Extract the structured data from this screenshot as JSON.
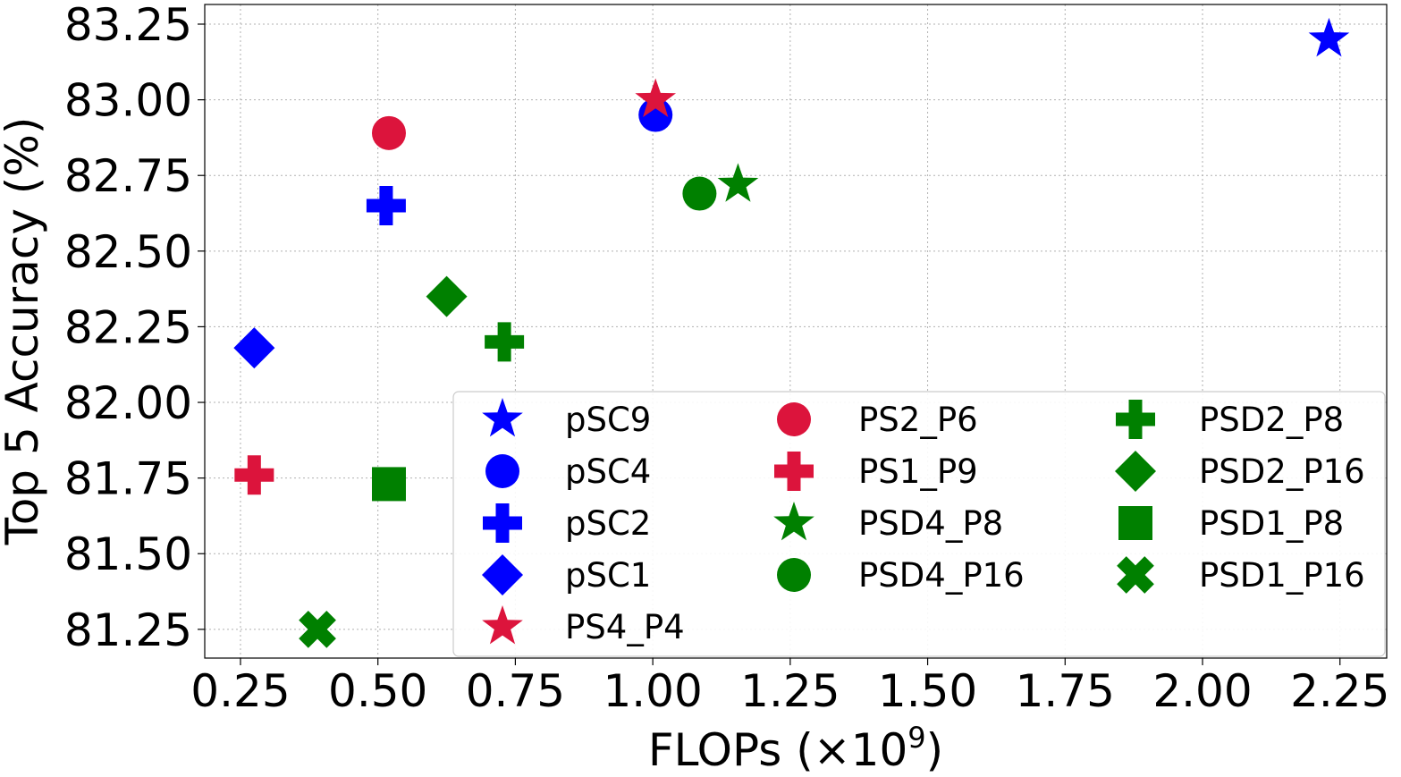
{
  "chart_data": {
    "type": "scatter",
    "title": "",
    "xlabel": "FLOPs (×10",
    "xlabel_exponent": "9",
    "xlabel_suffix": ")",
    "ylabel": "Top 5 Accuracy (%)",
    "xlim": [
      0.185,
      2.335
    ],
    "ylim": [
      81.155,
      83.315
    ],
    "xticks": [
      "0.25",
      "0.50",
      "0.75",
      "1.00",
      "1.25",
      "1.50",
      "1.75",
      "2.00",
      "2.25"
    ],
    "xtick_values": [
      0.25,
      0.5,
      0.75,
      1.0,
      1.25,
      1.5,
      1.75,
      2.0,
      2.25
    ],
    "yticks": [
      "81.25",
      "81.50",
      "81.75",
      "82.00",
      "82.25",
      "82.50",
      "82.75",
      "83.00",
      "83.25"
    ],
    "ytick_values": [
      81.25,
      81.5,
      81.75,
      82.0,
      82.25,
      82.5,
      82.75,
      83.0,
      83.25
    ],
    "grid": true,
    "legend_position": "lower-right",
    "legend_columns": 3,
    "series": [
      {
        "name": "pSC9",
        "marker": "star",
        "color": "#0000ff",
        "x": 2.23,
        "y": 83.2
      },
      {
        "name": "pSC4",
        "marker": "circle",
        "color": "#0000ff",
        "x": 1.005,
        "y": 82.95
      },
      {
        "name": "pSC2",
        "marker": "plus",
        "color": "#0000ff",
        "x": 0.515,
        "y": 82.65
      },
      {
        "name": "pSC1",
        "marker": "diamond",
        "color": "#0000ff",
        "x": 0.275,
        "y": 82.18
      },
      {
        "name": "PS4_P4",
        "marker": "star",
        "color": "#dc143c",
        "x": 1.005,
        "y": 83.0
      },
      {
        "name": "PS2_P6",
        "marker": "circle",
        "color": "#dc143c",
        "x": 0.52,
        "y": 82.89
      },
      {
        "name": "PS1_P9",
        "marker": "plus",
        "color": "#dc143c",
        "x": 0.275,
        "y": 81.76
      },
      {
        "name": "PSD4_P8",
        "marker": "star",
        "color": "#008000",
        "x": 1.155,
        "y": 82.72
      },
      {
        "name": "PSD4_P16",
        "marker": "circle",
        "color": "#008000",
        "x": 1.085,
        "y": 82.69
      },
      {
        "name": "PSD2_P8",
        "marker": "plus",
        "color": "#008000",
        "x": 0.73,
        "y": 82.2
      },
      {
        "name": "PSD2_P16",
        "marker": "diamond",
        "color": "#008000",
        "x": 0.625,
        "y": 82.35
      },
      {
        "name": "PSD1_P8",
        "marker": "square",
        "color": "#008000",
        "x": 0.52,
        "y": 81.73
      },
      {
        "name": "PSD1_P16",
        "marker": "x",
        "color": "#008000",
        "x": 0.39,
        "y": 81.25
      }
    ]
  }
}
